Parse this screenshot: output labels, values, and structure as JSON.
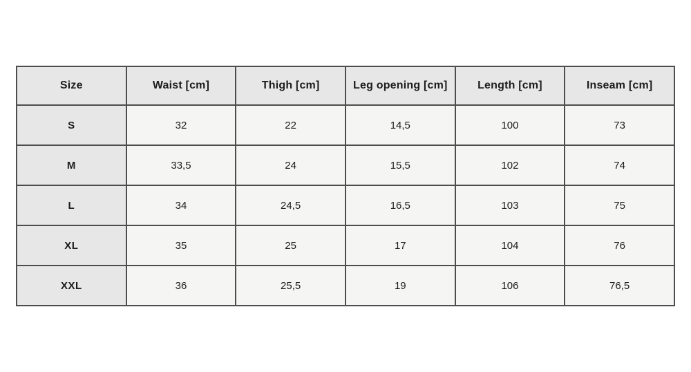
{
  "table": {
    "columns": [
      "Size",
      "Waist [cm]",
      "Thigh [cm]",
      "Leg opening [cm]",
      "Length [cm]",
      "Inseam [cm]"
    ],
    "rows": [
      {
        "size": "S",
        "values": [
          "32",
          "22",
          "14,5",
          "100",
          "73"
        ]
      },
      {
        "size": "M",
        "values": [
          "33,5",
          "24",
          "15,5",
          "102",
          "74"
        ]
      },
      {
        "size": "L",
        "values": [
          "34",
          "24,5",
          "16,5",
          "103",
          "75"
        ]
      },
      {
        "size": "XL",
        "values": [
          "35",
          "25",
          "17",
          "104",
          "76"
        ]
      },
      {
        "size": "XXL",
        "values": [
          "36",
          "25,5",
          "19",
          "106",
          "76,5"
        ]
      }
    ]
  },
  "colors": {
    "page_bg": "#ffffff",
    "header_bg": "#e7e7e7",
    "row_label_bg": "#e7e7e7",
    "cell_bg": "#f5f5f4",
    "border": "#4d4d4d",
    "text": "#1c1c1c"
  }
}
